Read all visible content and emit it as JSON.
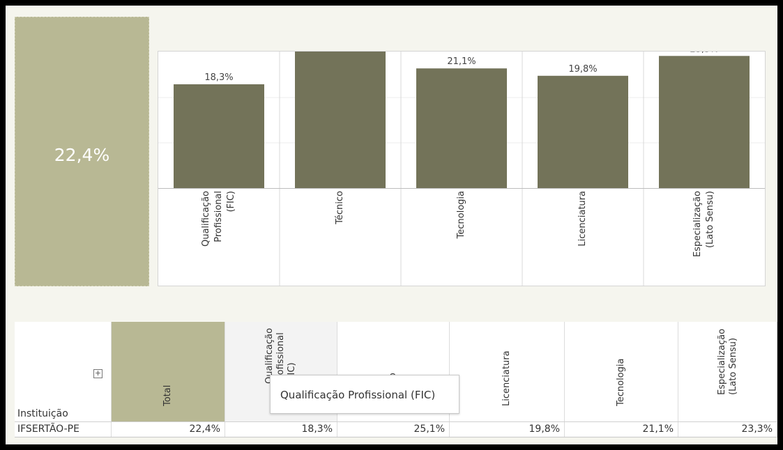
{
  "kpi": {
    "value": "22,4%"
  },
  "chart_data": {
    "type": "bar",
    "categories": [
      "Qualificação\nProfissional (FIC)",
      "Técnico",
      "Tecnologia",
      "Licenciatura",
      "Especialização\n(Lato Sensu)"
    ],
    "values": [
      18.3,
      25.1,
      21.1,
      19.8,
      23.3
    ],
    "data_labels": [
      "18,3%",
      "25,1%",
      "21,1%",
      "19,8%",
      "23,3%"
    ],
    "ylim": [
      0,
      30
    ],
    "grid": true,
    "bar_color": "#737359"
  },
  "table": {
    "row_header_label": "Instituição",
    "columns": [
      "Total",
      "Qualificação\nProfissional (FIC)",
      "Técnico",
      "Licenciatura",
      "Tecnologia",
      "Especialização\n(Lato Sensu)"
    ],
    "rows": [
      {
        "institution": "IFSERTÃO-PE",
        "values": [
          "22,4%",
          "18,3%",
          "25,1%",
          "19,8%",
          "21,1%",
          "23,3%"
        ]
      }
    ],
    "total_color": "#b8b894"
  },
  "tooltip": {
    "text": "Qualificação Profissional (FIC)"
  }
}
